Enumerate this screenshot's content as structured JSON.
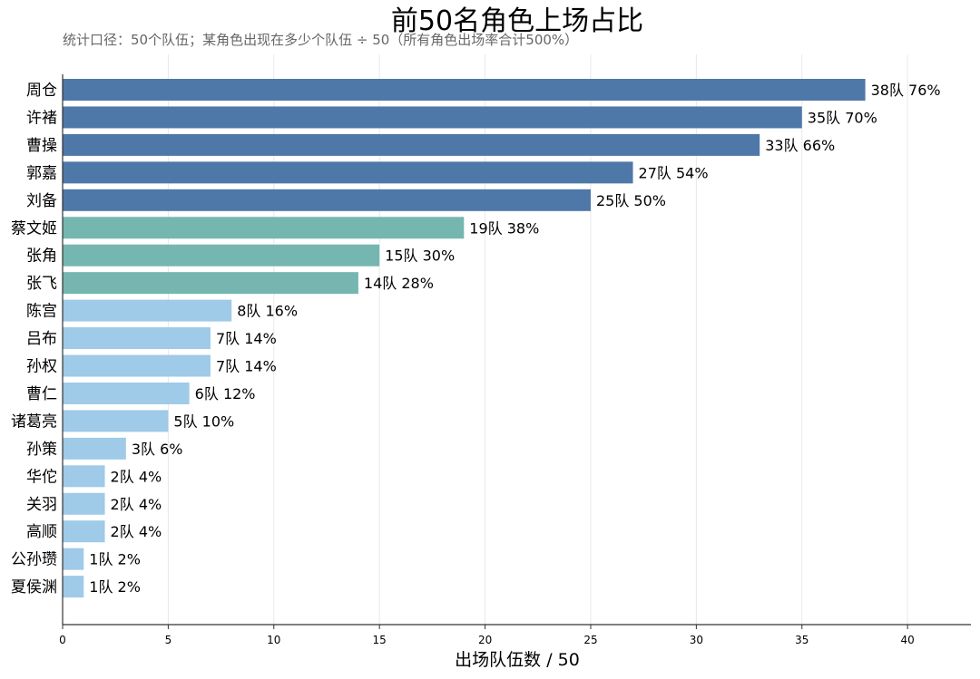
{
  "chart_data": {
    "type": "bar",
    "orientation": "horizontal",
    "title": "前50名角色上场占比",
    "subtitle": "统计口径：50个队伍；某角色出现在多少个队伍 ÷ 50（所有角色出场率合计500%）",
    "xlabel": "出场队伍数 / 50",
    "ylabel": "",
    "xlim": [
      0,
      43
    ],
    "xticks": [
      0,
      5,
      10,
      15,
      20,
      25,
      30,
      35,
      40
    ],
    "grid": "vertical",
    "categories": [
      "周仓",
      "许褚",
      "曹操",
      "郭嘉",
      "刘备",
      "蔡文姬",
      "张角",
      "张飞",
      "陈宫",
      "吕布",
      "孙权",
      "曹仁",
      "诸葛亮",
      "孙策",
      "华佗",
      "关羽",
      "高顺",
      "公孙瓒",
      "夏侯渊"
    ],
    "values": [
      38,
      35,
      33,
      27,
      25,
      19,
      15,
      14,
      8,
      7,
      7,
      6,
      5,
      3,
      2,
      2,
      2,
      1,
      1
    ],
    "labels": [
      "38队  76%",
      "35队  70%",
      "33队  66%",
      "27队  54%",
      "25队  50%",
      "19队  38%",
      "15队  30%",
      "14队  28%",
      "8队  16%",
      "7队  14%",
      "7队  14%",
      "6队  12%",
      "5队  10%",
      "3队  6%",
      "2队  4%",
      "2队  4%",
      "2队  4%",
      "1队  2%",
      "1队  2%"
    ],
    "colors": {
      "high": "#4e78a8",
      "mid": "#75b7b0",
      "low": "#9fcae8",
      "grid": "#e8e8e8",
      "axis": "#333333"
    },
    "color_groups": [
      "high",
      "high",
      "high",
      "high",
      "high",
      "mid",
      "mid",
      "mid",
      "low",
      "low",
      "low",
      "low",
      "low",
      "low",
      "low",
      "low",
      "low",
      "low",
      "low"
    ]
  }
}
